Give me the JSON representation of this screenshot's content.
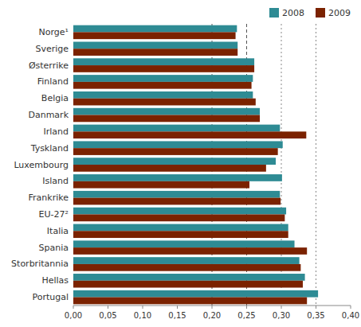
{
  "chart_data": {
    "type": "bar",
    "orientation": "horizontal",
    "categories": [
      "Norge¹",
      "Sverige",
      "Østerrike",
      "Finland",
      "Belgia",
      "Danmark",
      "Irland",
      "Tyskland",
      "Luxembourg",
      "Island",
      "Frankrike",
      "EU-27²",
      "Italia",
      "Spania",
      "Storbritannia",
      "Hellas",
      "Portugal"
    ],
    "series": [
      {
        "name": "2008",
        "color": "#2E8B94",
        "values": [
          0.236,
          0.237,
          0.261,
          0.259,
          0.259,
          0.269,
          0.298,
          0.302,
          0.292,
          0.301,
          0.298,
          0.307,
          0.31,
          0.319,
          0.326,
          0.334,
          0.353
        ]
      },
      {
        "name": "2009",
        "color": "#7B2200",
        "values": [
          0.234,
          0.237,
          0.261,
          0.257,
          0.263,
          0.269,
          0.336,
          0.295,
          0.278,
          0.254,
          0.299,
          0.305,
          0.31,
          0.337,
          0.328,
          0.331,
          0.337
        ]
      }
    ],
    "xlim": [
      0,
      0.4
    ],
    "xticks": [
      {
        "value": 0.0,
        "label": "0,00"
      },
      {
        "value": 0.05,
        "label": "0,05"
      },
      {
        "value": 0.1,
        "label": "0,10"
      },
      {
        "value": 0.15,
        "label": "0,15"
      },
      {
        "value": 0.2,
        "label": "0,20"
      },
      {
        "value": 0.25,
        "label": "0,25"
      },
      {
        "value": 0.3,
        "label": "0,30"
      },
      {
        "value": 0.35,
        "label": "0,35"
      },
      {
        "value": 0.4,
        "label": "0,40"
      }
    ],
    "reference_lines": [
      {
        "value": 0.2,
        "line_style": "dashed"
      },
      {
        "value": 0.25,
        "line_style": "dashed"
      },
      {
        "value": 0.3,
        "line_style": "dotted"
      },
      {
        "value": 0.35,
        "line_style": "dotted"
      }
    ],
    "grid": false,
    "legend": "upper right"
  }
}
